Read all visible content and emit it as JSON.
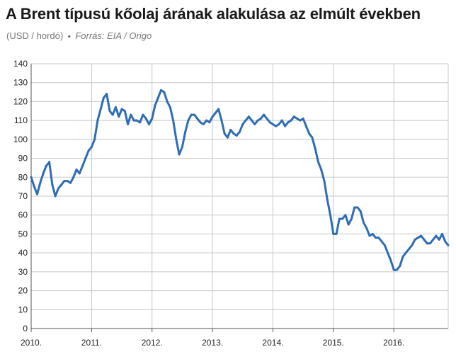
{
  "title": "A Brent típusú kőolaj árának alakulása az elmúlt években",
  "subtitle": {
    "unit": "(USD / hordó)",
    "separator": "•",
    "source": "Forrás: EIA / Origo"
  },
  "chart_data": {
    "type": "line",
    "title": "A Brent típusú kőolaj árának alakulása az elmúlt években",
    "subtitle": "(USD / hordó)",
    "source": "Forrás: EIA / Origo",
    "x_tick_labels": [
      "2010.",
      "2011.",
      "2012.",
      "2013.",
      "2014.",
      "2015.",
      "2016."
    ],
    "y_ticks": [
      0,
      10,
      20,
      30,
      40,
      50,
      60,
      70,
      80,
      90,
      100,
      110,
      120,
      130,
      140
    ],
    "xlim": [
      2010.0,
      2016.9
    ],
    "ylim": [
      0,
      140
    ],
    "grid": true,
    "line_color": "#2e6db4",
    "series": [
      {
        "x": [
          2010.0,
          2010.05,
          2010.1,
          2010.15,
          2010.2,
          2010.25,
          2010.3,
          2010.35,
          2010.4,
          2010.45,
          2010.5,
          2010.55,
          2010.6,
          2010.65,
          2010.7,
          2010.75,
          2010.8,
          2010.85,
          2010.9,
          2010.95,
          2011.0,
          2011.05,
          2011.1,
          2011.15,
          2011.2,
          2011.25,
          2011.3,
          2011.35,
          2011.4,
          2011.45,
          2011.5,
          2011.55,
          2011.6,
          2011.65,
          2011.7,
          2011.75,
          2011.8,
          2011.85,
          2011.9,
          2011.95,
          2012.0,
          2012.05,
          2012.1,
          2012.15,
          2012.2,
          2012.25,
          2012.3,
          2012.35,
          2012.4,
          2012.45,
          2012.5,
          2012.55,
          2012.6,
          2012.65,
          2012.7,
          2012.75,
          2012.8,
          2012.85,
          2012.9,
          2012.95,
          2013.0,
          2013.05,
          2013.1,
          2013.15,
          2013.2,
          2013.25,
          2013.3,
          2013.35,
          2013.4,
          2013.45,
          2013.5,
          2013.55,
          2013.6,
          2013.65,
          2013.7,
          2013.75,
          2013.8,
          2013.85,
          2013.9,
          2013.95,
          2014.0,
          2014.05,
          2014.1,
          2014.15,
          2014.2,
          2014.25,
          2014.3,
          2014.35,
          2014.4,
          2014.45,
          2014.5,
          2014.55,
          2014.6,
          2014.65,
          2014.7,
          2014.75,
          2014.8,
          2014.85,
          2014.9,
          2014.95,
          2015.0,
          2015.05,
          2015.1,
          2015.15,
          2015.2,
          2015.25,
          2015.3,
          2015.35,
          2015.4,
          2015.45,
          2015.5,
          2015.55,
          2015.6,
          2015.65,
          2015.7,
          2015.75,
          2015.8,
          2015.85,
          2015.9,
          2015.95,
          2016.0,
          2016.05,
          2016.1,
          2016.15,
          2016.2,
          2016.25,
          2016.3,
          2016.35,
          2016.4,
          2016.45,
          2016.5,
          2016.55,
          2016.6,
          2016.65,
          2016.7,
          2016.75,
          2016.8,
          2016.85,
          2016.9
        ],
        "values": [
          80,
          75,
          71,
          77,
          82,
          86,
          88,
          76,
          70,
          74,
          76,
          78,
          78,
          77,
          80,
          84,
          82,
          86,
          90,
          94,
          96,
          100,
          110,
          116,
          122,
          124,
          115,
          113,
          117,
          112,
          116,
          115,
          108,
          113,
          110,
          110,
          109,
          113,
          111,
          108,
          111,
          118,
          122,
          126,
          125,
          120,
          117,
          110,
          100,
          92,
          96,
          104,
          110,
          113,
          113,
          111,
          109,
          108,
          110,
          109,
          112,
          114,
          116,
          110,
          103,
          101,
          105,
          103,
          102,
          104,
          108,
          110,
          112,
          110,
          108,
          110,
          111,
          113,
          111,
          109,
          108,
          107,
          108,
          110,
          107,
          109,
          110,
          112,
          111,
          110,
          111,
          107,
          103,
          101,
          95,
          88,
          84,
          78,
          68,
          60,
          50,
          50,
          58,
          58,
          60,
          55,
          58,
          64,
          64,
          62,
          56,
          53,
          49,
          50,
          48,
          48,
          46,
          44,
          40,
          36,
          31,
          31,
          33,
          38,
          40,
          42,
          44,
          47,
          48,
          49,
          47,
          45,
          45,
          47,
          49,
          47,
          50,
          46,
          44
        ]
      }
    ]
  }
}
